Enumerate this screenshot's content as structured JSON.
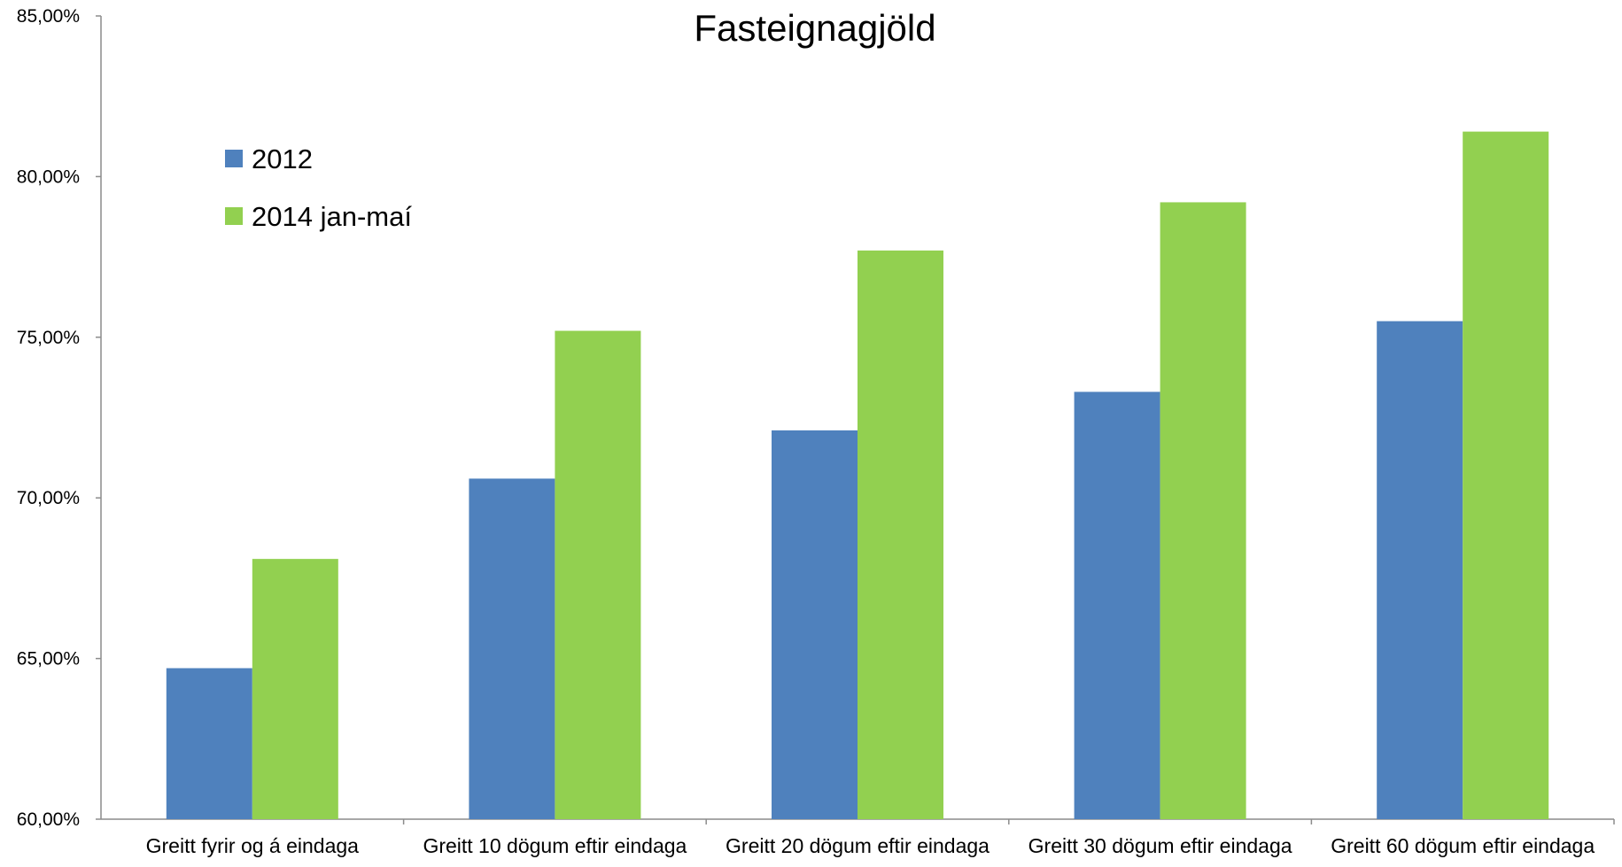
{
  "chart_data": {
    "type": "bar",
    "title": "Fasteignagjöld",
    "categories": [
      "Greitt fyrir og á eindaga",
      "Greitt 10 dögum eftir eindaga",
      "Greitt 20 dögum eftir eindaga",
      "Greitt 30 dögum eftir eindaga",
      "Greitt 60 dögum eftir eindaga"
    ],
    "series": [
      {
        "name": "2012",
        "color": "#4f81bd",
        "values": [
          64.7,
          70.6,
          72.1,
          73.3,
          75.5
        ]
      },
      {
        "name": "2014 jan-maí",
        "color": "#92d050",
        "values": [
          68.1,
          75.2,
          77.7,
          79.2,
          81.4
        ]
      }
    ],
    "ylim": [
      60,
      85
    ],
    "yticks": [
      60,
      65,
      70,
      75,
      80,
      85
    ],
    "ytick_labels": [
      "60,00%",
      "65,00%",
      "70,00%",
      "75,00%",
      "80,00%",
      "85,00%"
    ],
    "xlabel": "",
    "ylabel": "",
    "grid": false,
    "legend_position": "top-left"
  }
}
